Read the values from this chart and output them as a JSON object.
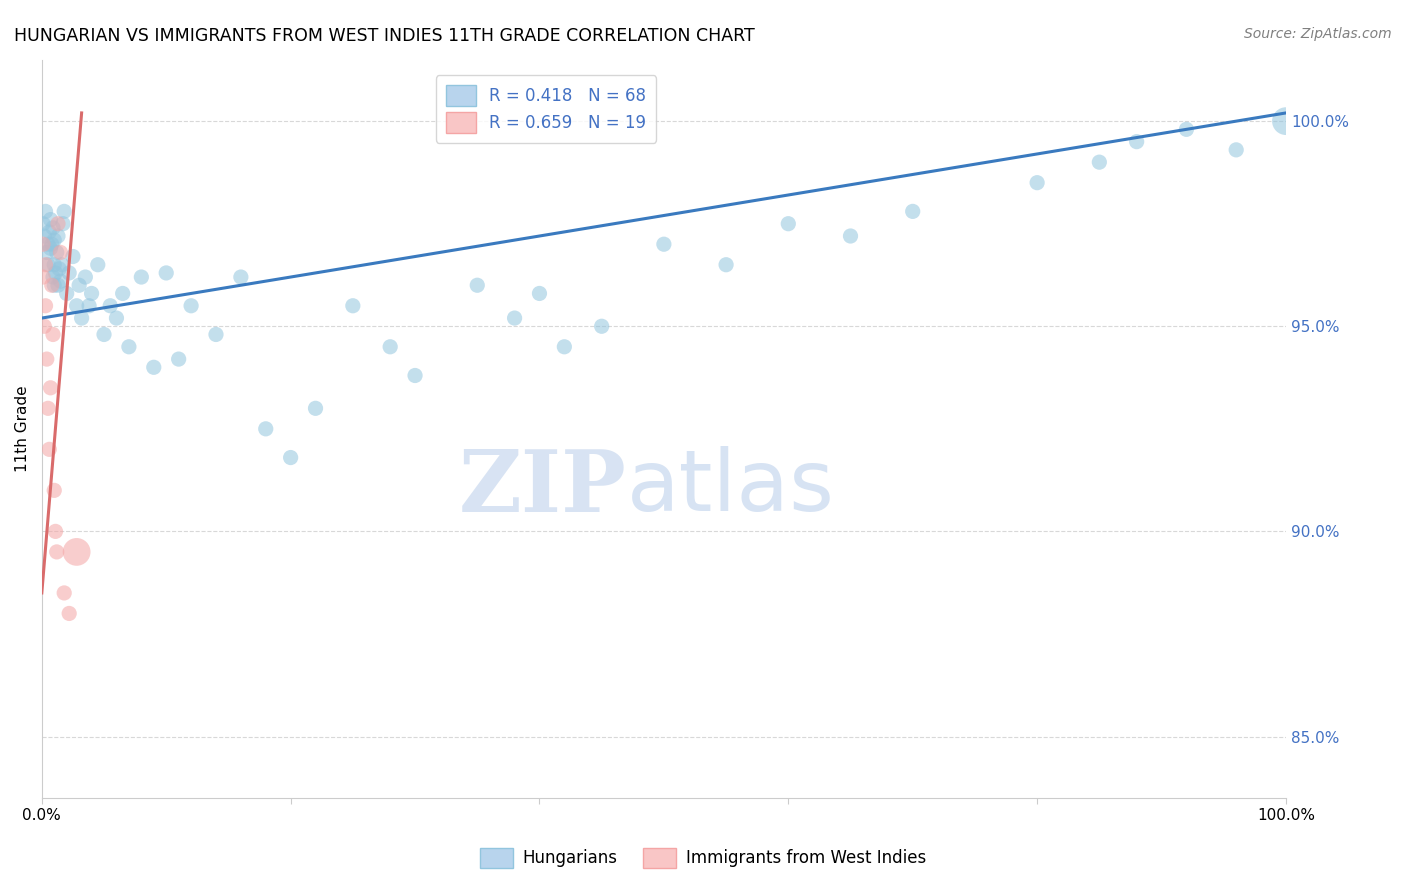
{
  "title": "HUNGARIAN VS IMMIGRANTS FROM WEST INDIES 11TH GRADE CORRELATION CHART",
  "source": "Source: ZipAtlas.com",
  "ylabel": "11th Grade",
  "blue_R": 0.418,
  "blue_N": 68,
  "pink_R": 0.659,
  "pink_N": 19,
  "blue_color": "#92c5de",
  "pink_color": "#f4a5a5",
  "blue_line_color": "#3a7abf",
  "pink_line_color": "#d96b6b",
  "watermark_zip": "ZIP",
  "watermark_atlas": "atlas",
  "background_color": "#ffffff",
  "grid_color": "#d8d8d8",
  "blue_x": [
    0.001,
    0.002,
    0.003,
    0.004,
    0.005,
    0.005,
    0.006,
    0.007,
    0.007,
    0.008,
    0.009,
    0.009,
    0.01,
    0.01,
    0.01,
    0.011,
    0.012,
    0.013,
    0.013,
    0.014,
    0.015,
    0.016,
    0.017,
    0.018,
    0.02,
    0.022,
    0.025,
    0.028,
    0.03,
    0.032,
    0.035,
    0.038,
    0.04,
    0.045,
    0.05,
    0.055,
    0.06,
    0.065,
    0.07,
    0.08,
    0.09,
    0.1,
    0.11,
    0.12,
    0.14,
    0.16,
    0.18,
    0.2,
    0.22,
    0.25,
    0.28,
    0.3,
    0.35,
    0.38,
    0.4,
    0.42,
    0.45,
    0.5,
    0.55,
    0.6,
    0.65,
    0.7,
    0.8,
    0.85,
    0.88,
    0.92,
    0.96,
    1.0
  ],
  "blue_y": [
    97.5,
    97.2,
    97.8,
    96.8,
    97.0,
    96.5,
    97.3,
    97.6,
    96.9,
    97.0,
    96.2,
    97.4,
    96.0,
    96.5,
    97.1,
    96.3,
    96.8,
    96.0,
    97.2,
    96.4,
    96.1,
    96.5,
    97.5,
    97.8,
    95.8,
    96.3,
    96.7,
    95.5,
    96.0,
    95.2,
    96.2,
    95.5,
    95.8,
    96.5,
    94.8,
    95.5,
    95.2,
    95.8,
    94.5,
    96.2,
    94.0,
    96.3,
    94.2,
    95.5,
    94.8,
    96.2,
    92.5,
    91.8,
    93.0,
    95.5,
    94.5,
    93.8,
    96.0,
    95.2,
    95.8,
    94.5,
    95.0,
    97.0,
    96.5,
    97.5,
    97.2,
    97.8,
    98.5,
    99.0,
    99.5,
    99.8,
    99.3,
    100.0
  ],
  "blue_size": [
    120,
    120,
    120,
    120,
    120,
    120,
    120,
    120,
    120,
    120,
    120,
    120,
    120,
    120,
    120,
    120,
    120,
    120,
    120,
    120,
    120,
    120,
    120,
    120,
    120,
    120,
    120,
    120,
    120,
    120,
    120,
    120,
    120,
    120,
    120,
    120,
    120,
    120,
    120,
    120,
    120,
    120,
    120,
    120,
    120,
    120,
    120,
    120,
    120,
    120,
    120,
    120,
    120,
    120,
    120,
    120,
    120,
    120,
    120,
    120,
    120,
    120,
    120,
    120,
    120,
    120,
    120,
    400
  ],
  "pink_x": [
    0.001,
    0.001,
    0.002,
    0.003,
    0.003,
    0.004,
    0.005,
    0.006,
    0.007,
    0.008,
    0.009,
    0.01,
    0.011,
    0.012,
    0.013,
    0.015,
    0.018,
    0.022,
    0.028
  ],
  "pink_y": [
    97.0,
    96.2,
    95.0,
    96.5,
    95.5,
    94.2,
    93.0,
    92.0,
    93.5,
    96.0,
    94.8,
    91.0,
    90.0,
    89.5,
    97.5,
    96.8,
    88.5,
    88.0,
    89.5
  ],
  "pink_size": [
    120,
    120,
    120,
    120,
    120,
    120,
    120,
    120,
    120,
    120,
    120,
    120,
    120,
    120,
    120,
    120,
    120,
    120,
    400
  ],
  "blue_trend_x": [
    0.0,
    1.0
  ],
  "blue_trend_y": [
    95.2,
    100.2
  ],
  "pink_trend_x": [
    0.0,
    0.032
  ],
  "pink_trend_y": [
    88.5,
    100.2
  ],
  "xlim": [
    0.0,
    1.0
  ],
  "ylim": [
    83.5,
    101.5
  ],
  "yticks": [
    85.0,
    90.0,
    95.0,
    100.0
  ],
  "xticks": [
    0.0,
    0.2,
    0.4,
    0.6,
    0.8,
    1.0
  ]
}
